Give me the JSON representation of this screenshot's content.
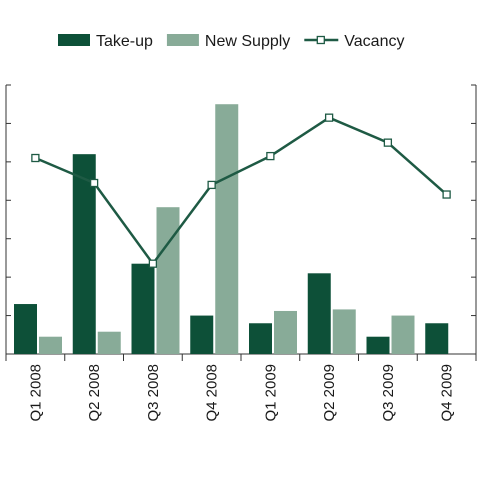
{
  "chart_data": {
    "type": "bar",
    "categories": [
      "Q1 2008",
      "Q2 2008",
      "Q3 2008",
      "Q4 2008",
      "Q1 2009",
      "Q2 2009",
      "Q3 2009",
      "Q4 2009"
    ],
    "series": [
      {
        "name": "Take-up",
        "type": "bar",
        "color": "#0d5038",
        "values": [
          1.3,
          5.2,
          2.35,
          1.0,
          0.8,
          2.1,
          0.45,
          0.8
        ]
      },
      {
        "name": "New Supply",
        "type": "bar",
        "color": "#88ab98",
        "values": [
          0.45,
          0.58,
          3.82,
          6.5,
          1.12,
          1.16,
          1.0,
          null
        ]
      },
      {
        "name": "Vacancy",
        "type": "line",
        "color": "#1e5a44",
        "marker": "square",
        "values": [
          5.1,
          4.45,
          2.35,
          4.4,
          5.15,
          6.15,
          5.5,
          4.15
        ]
      }
    ],
    "ylim": [
      0,
      7
    ],
    "y_ticks_labeled": false,
    "legend_position": "top-center",
    "grid": false
  }
}
